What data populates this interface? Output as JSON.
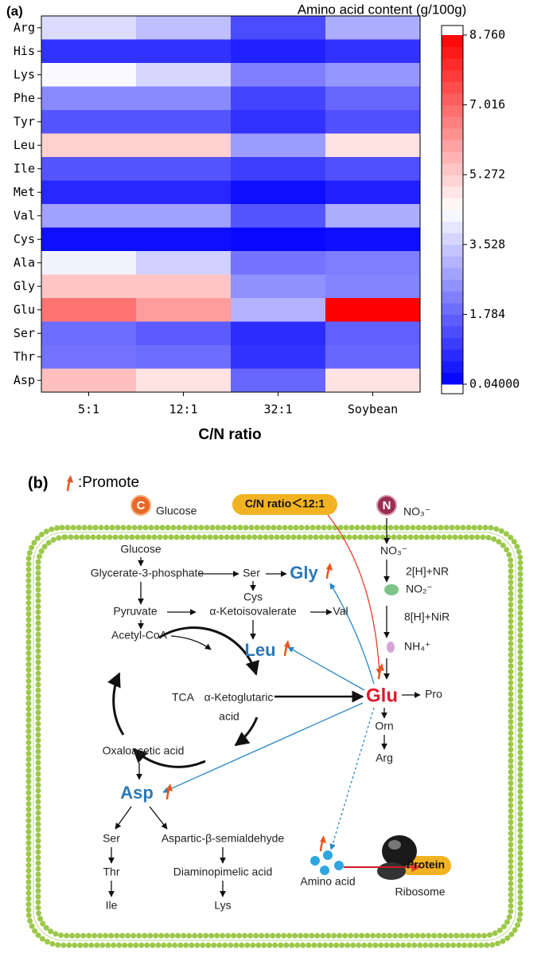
{
  "chart_data": {
    "type": "heatmap",
    "panel": "(a)",
    "title": "Amino acid content (g/100g)",
    "xlabel": "C/N ratio",
    "categories": [
      "5:1",
      "12:1",
      "32:1",
      "Soybean"
    ],
    "rows": [
      "Arg",
      "His",
      "Lys",
      "Phe",
      "Tyr",
      "Leu",
      "Ile",
      "Met",
      "Val",
      "Cys",
      "Ala",
      "Gly",
      "Glu",
      "Ser",
      "Thr",
      "Asp"
    ],
    "values": [
      [
        3.8,
        3.3,
        1.3,
        3.0
      ],
      [
        0.9,
        0.9,
        0.6,
        0.9
      ],
      [
        4.3,
        3.7,
        2.2,
        2.6
      ],
      [
        2.4,
        2.4,
        1.2,
        1.8
      ],
      [
        1.5,
        1.5,
        0.9,
        1.4
      ],
      [
        5.2,
        5.2,
        2.7,
        4.9
      ],
      [
        1.5,
        1.5,
        1.1,
        1.4
      ],
      [
        0.7,
        0.7,
        0.3,
        0.6
      ],
      [
        2.8,
        2.8,
        1.5,
        3.0
      ],
      [
        0.3,
        0.3,
        0.2,
        0.3
      ],
      [
        4.2,
        3.6,
        2.0,
        2.2
      ],
      [
        5.4,
        5.4,
        2.5,
        2.3
      ],
      [
        6.8,
        6.1,
        3.1,
        8.76
      ],
      [
        1.9,
        1.6,
        0.8,
        1.7
      ],
      [
        2.0,
        1.9,
        0.9,
        1.8
      ],
      [
        5.5,
        4.9,
        1.8,
        4.9
      ]
    ],
    "colors": [
      "#0000ff",
      "#ffffff",
      "#ff0000"
    ],
    "clim": [
      0.04,
      8.76
    ],
    "cticks": [
      {
        "value": 0.04,
        "label": "0.04000"
      },
      1.784,
      3.528,
      5.272,
      7.016,
      {
        "value": 8.76,
        "label": "8.760"
      }
    ]
  },
  "diagram": {
    "label": "(b)",
    "legend": ":Promote",
    "nodes": [
      "C",
      "Glucose",
      "C/N ratio＜12:1",
      "N",
      "NO₃⁻",
      "Glucose",
      "Glycerate-3-phosphate",
      "Ser",
      "Gly",
      "Cys",
      "Pyruvate",
      "α-Ketoisovalerate",
      "Val",
      "Acetyl-CoA",
      "Leu",
      "TCA",
      "α-Ketoglutaric",
      "acid",
      "Glu",
      "Pro",
      "Orn",
      "Arg",
      "Oxaloacetic acid",
      "Asp",
      "Ser",
      "Aspartic-β-semialdehyde",
      "Thr",
      "Diaminopimelic acid",
      "Ile",
      "Lys",
      "NO₃⁻",
      "2[H]+NR",
      "NO₂⁻",
      "8[H]+NiR",
      "NH₄⁺",
      "Amino acid",
      "Ribosome",
      "Protein"
    ]
  }
}
